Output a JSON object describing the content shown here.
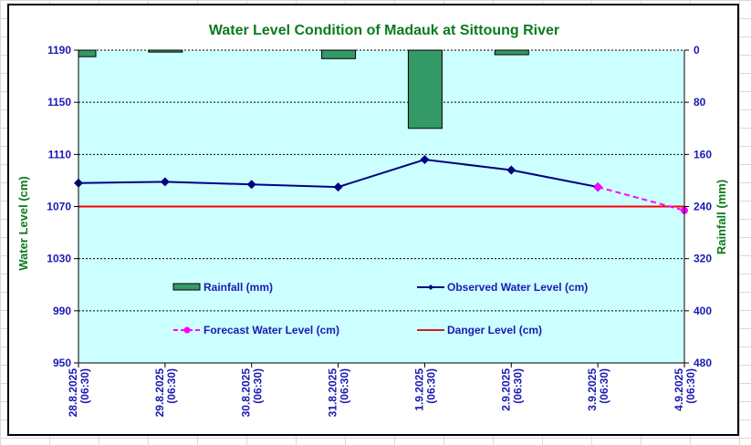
{
  "chart_data": {
    "type": "line",
    "title": "Water Level Condition of Madauk at Sittoung River",
    "categories": [
      [
        "28.8.2025",
        "(06:30)"
      ],
      [
        "29.8.2025",
        "(06:30)"
      ],
      [
        "30.8.2025",
        "(06:30)"
      ],
      [
        "31.8.2025",
        "(06:30)"
      ],
      [
        "1.9.2025",
        "(06:30)"
      ],
      [
        "2.9.2025",
        "(06:30)"
      ],
      [
        "3.9.2025",
        "(06:30)"
      ],
      [
        "4.9.2025",
        "(06:30)"
      ]
    ],
    "ylabel": "Water Level (cm)",
    "y2label": "Rainfall (mm)",
    "ylim": [
      950,
      1190
    ],
    "yticks": [
      950,
      990,
      1030,
      1070,
      1110,
      1150,
      1190
    ],
    "y2lim": [
      480,
      0
    ],
    "y2ticks": [
      0,
      80,
      160,
      240,
      320,
      400,
      480
    ],
    "grid": true,
    "series": [
      {
        "name": "Rainfall (mm)",
        "type": "bar",
        "axis": "right",
        "color": "#339966",
        "values": [
          10,
          3,
          0,
          13,
          120,
          7,
          null,
          null
        ]
      },
      {
        "name": "Observed Water Level (cm)",
        "type": "line",
        "axis": "left",
        "color": "#000080",
        "marker": "diamond",
        "values": [
          1088,
          1089,
          1087,
          1085,
          1106,
          1098,
          1085,
          null
        ]
      },
      {
        "name": "Forecast Water Level (cm)",
        "type": "line",
        "axis": "left",
        "color": "#ff00ff",
        "marker": "circle",
        "dashed": true,
        "values": [
          null,
          null,
          null,
          null,
          null,
          null,
          1085,
          1067
        ]
      },
      {
        "name": "Danger Level (cm)",
        "type": "line",
        "axis": "left",
        "color": "#ff0000",
        "value": 1070
      }
    ],
    "legend": {
      "placement": "inside-lower-center",
      "order": [
        "Rainfall (mm)",
        "Observed Water Level (cm)",
        "Forecast Water Level (cm)",
        "Danger Level (cm)"
      ]
    },
    "colors": {
      "plot_background": "#ccffff",
      "tick_text": "#1a1ab3",
      "title_text": "#0b7a1e"
    }
  }
}
